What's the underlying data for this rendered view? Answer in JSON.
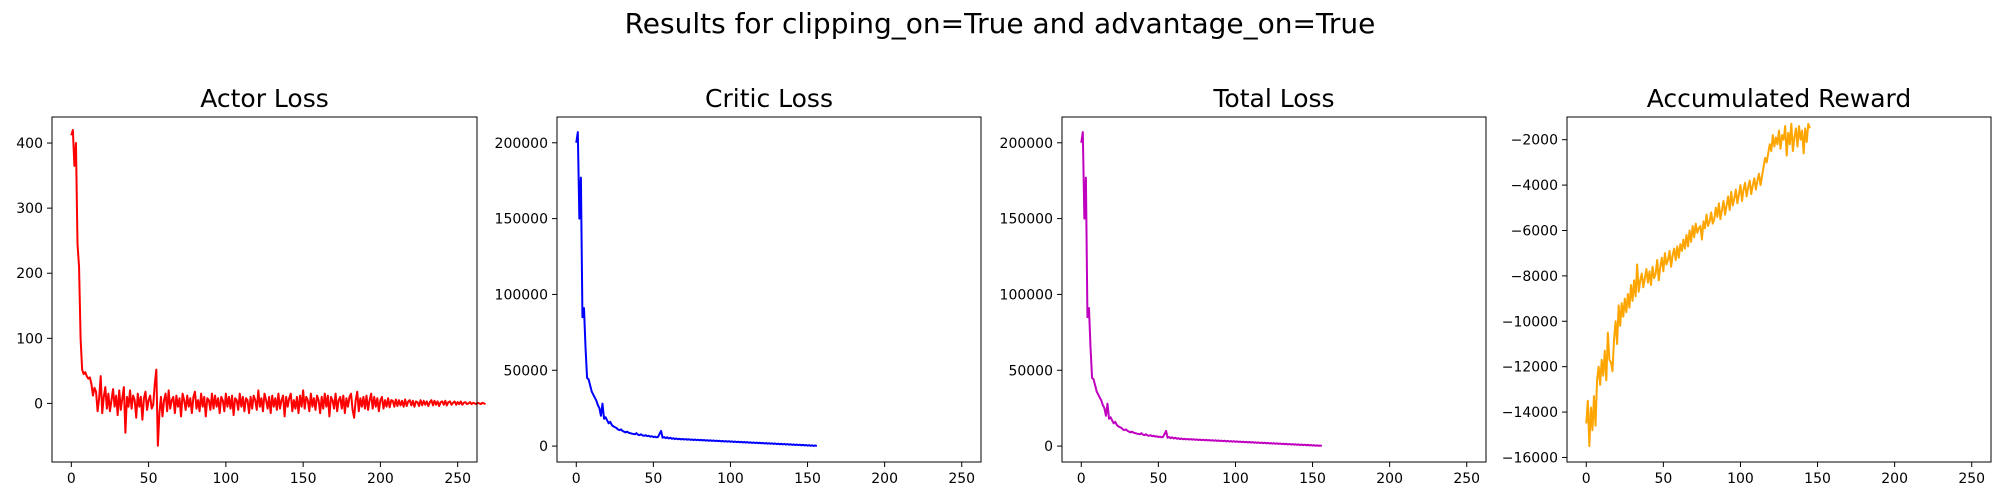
{
  "figure": {
    "title": "Results for clipping_on=True and advantage_on=True"
  },
  "chart_data": [
    {
      "type": "line",
      "title": "Actor Loss",
      "xlabel": "",
      "ylabel": "",
      "color": "#ff0000",
      "xlim": [
        -12.5,
        262.5
      ],
      "ylim": [
        -90,
        440
      ],
      "xticks": [
        0,
        50,
        100,
        150,
        200,
        250
      ],
      "yticks": [
        0,
        100,
        200,
        300,
        400
      ],
      "grid": false,
      "series": [
        {
          "values": [
            412,
            420,
            365,
            400,
            245,
            210,
            100,
            52,
            45,
            48,
            42,
            38,
            40,
            30,
            12,
            24,
            18,
            -12,
            8,
            42,
            -15,
            10,
            25,
            -8,
            15,
            -12,
            5,
            22,
            -5,
            12,
            -18,
            20,
            -10,
            8,
            25,
            -45,
            10,
            -5,
            20,
            -8,
            12,
            5,
            -22,
            15,
            -5,
            10,
            -25,
            8,
            18,
            -10,
            5,
            12,
            -8,
            -2,
            30,
            52,
            -65,
            -15,
            10,
            -20,
            5,
            15,
            -12,
            20,
            -8,
            5,
            10,
            -15,
            12,
            -5,
            8,
            -20,
            15,
            5,
            -10,
            12,
            -5,
            8,
            -15,
            10,
            18,
            -8,
            5,
            -12,
            15,
            -5,
            10,
            -20,
            8,
            5,
            -10,
            15,
            -8,
            12,
            -5,
            8,
            -15,
            10,
            5,
            -12,
            15,
            -5,
            10,
            -8,
            12,
            -18,
            8,
            5,
            -10,
            15,
            -5,
            10,
            -12,
            8,
            5,
            -15,
            10,
            -8,
            12,
            5,
            -10,
            20,
            -5,
            8,
            -12,
            15,
            5,
            -8,
            10,
            -15,
            12,
            -5,
            8,
            -10,
            15,
            -8,
            5,
            12,
            -20,
            10,
            -5,
            8,
            15,
            -12,
            5,
            -8,
            10,
            -15,
            12,
            -5,
            20,
            -8,
            10,
            5,
            -12,
            15,
            -5,
            8,
            -10,
            12,
            5,
            -15,
            10,
            -8,
            15,
            -5,
            12,
            -20,
            10,
            5,
            -8,
            15,
            -12,
            5,
            10,
            -8,
            12,
            -15,
            8,
            -5,
            10,
            15,
            -10,
            -22,
            5,
            18,
            -12,
            8,
            -5,
            10,
            -8,
            12,
            -10,
            5,
            15,
            -8,
            10,
            -5,
            8,
            -12,
            5,
            10,
            -8,
            5,
            -5,
            8,
            -6,
            5,
            4,
            -5,
            6,
            -4,
            5,
            -3,
            4,
            -5,
            6,
            -4,
            3,
            5,
            -3,
            4,
            -5,
            3,
            2,
            -4,
            5,
            -3,
            4,
            -2,
            3,
            -4,
            2,
            5,
            -3,
            4,
            -2,
            3,
            -4,
            2,
            3,
            -2,
            4,
            -3,
            2,
            3,
            -2,
            1,
            3,
            -2,
            2,
            -1,
            3,
            -2,
            1,
            2,
            -1,
            0,
            2,
            -1,
            1,
            0,
            -1,
            1,
            0,
            -1,
            1,
            0,
            -1
          ]
        }
      ]
    },
    {
      "type": "line",
      "title": "Critic Loss",
      "xlabel": "",
      "ylabel": "",
      "color": "#0000ff",
      "xlim": [
        -12.5,
        262.5
      ],
      "ylim": [
        -10500,
        217000
      ],
      "xticks": [
        0,
        50,
        100,
        150,
        200,
        250
      ],
      "yticks": [
        0,
        50000,
        100000,
        150000,
        200000
      ],
      "grid": false,
      "series": [
        {
          "values": [
            200000,
            207000,
            150000,
            177000,
            85000,
            91000,
            65000,
            45000,
            44000,
            40000,
            36000,
            34000,
            32000,
            30000,
            27000,
            25000,
            20000,
            28000,
            18000,
            19000,
            17000,
            15000,
            16000,
            14000,
            13000,
            12500,
            12000,
            11000,
            10500,
            11000,
            10000,
            9500,
            9000,
            9500,
            8800,
            8500,
            8200,
            8000,
            7800,
            8500,
            7500,
            7200,
            7800,
            7000,
            6800,
            7200,
            6500,
            6800,
            6200,
            6500,
            6000,
            6200,
            5800,
            6000,
            8000,
            10000,
            5500,
            6000,
            5200,
            5800,
            5000,
            5500,
            4800,
            5200,
            4600,
            5000,
            4500,
            4800,
            4400,
            4700,
            4300,
            4600,
            4200,
            4500,
            4100,
            4400,
            4000,
            4300,
            3900,
            4200,
            3800,
            4100,
            3700,
            4000,
            3600,
            3900,
            3500,
            3800,
            3400,
            3700,
            3300,
            3600,
            3200,
            3500,
            3100,
            3400,
            3000,
            3300,
            2900,
            3200,
            2800,
            3100,
            2700,
            3000,
            2600,
            2900,
            2500,
            2800,
            2400,
            2700,
            2300,
            2600,
            2200,
            2500,
            2100,
            2400,
            2000,
            2300,
            1900,
            2200,
            1800,
            2100,
            1700,
            2000,
            1600,
            1900,
            1500,
            1800,
            1400,
            1700,
            1300,
            1600,
            1200,
            1500,
            1100,
            1400,
            1000,
            1300,
            900,
            1200,
            800,
            1100,
            700,
            1000,
            600,
            900,
            500,
            800,
            400,
            700,
            300,
            600,
            200,
            500,
            100,
            400,
            0
          ]
        }
      ]
    },
    {
      "type": "line",
      "title": "Total Loss",
      "xlabel": "",
      "ylabel": "",
      "color": "#bf00bf",
      "xlim": [
        -12.5,
        262.5
      ],
      "ylim": [
        -10500,
        217000
      ],
      "xticks": [
        0,
        50,
        100,
        150,
        200,
        250
      ],
      "yticks": [
        0,
        50000,
        100000,
        150000,
        200000
      ],
      "grid": false,
      "series": [
        {
          "values": [
            200000,
            207000,
            150000,
            177000,
            85000,
            91000,
            65000,
            45000,
            44000,
            40000,
            36000,
            34000,
            32000,
            30000,
            27000,
            25000,
            20000,
            28000,
            18000,
            19000,
            17000,
            15000,
            16000,
            14000,
            13000,
            12500,
            12000,
            11000,
            10500,
            11000,
            10000,
            9500,
            9000,
            9500,
            8800,
            8500,
            8200,
            8000,
            7800,
            8500,
            7500,
            7200,
            7800,
            7000,
            6800,
            7200,
            6500,
            6800,
            6200,
            6500,
            6000,
            6200,
            5800,
            6000,
            8000,
            10000,
            5500,
            6000,
            5200,
            5800,
            5000,
            5500,
            4800,
            5200,
            4600,
            5000,
            4500,
            4800,
            4400,
            4700,
            4300,
            4600,
            4200,
            4500,
            4100,
            4400,
            4000,
            4300,
            3900,
            4200,
            3800,
            4100,
            3700,
            4000,
            3600,
            3900,
            3500,
            3800,
            3400,
            3700,
            3300,
            3600,
            3200,
            3500,
            3100,
            3400,
            3000,
            3300,
            2900,
            3200,
            2800,
            3100,
            2700,
            3000,
            2600,
            2900,
            2500,
            2800,
            2400,
            2700,
            2300,
            2600,
            2200,
            2500,
            2100,
            2400,
            2000,
            2300,
            1900,
            2200,
            1800,
            2100,
            1700,
            2000,
            1600,
            1900,
            1500,
            1800,
            1400,
            1700,
            1300,
            1600,
            1200,
            1500,
            1100,
            1400,
            1000,
            1300,
            900,
            1200,
            800,
            1100,
            700,
            1000,
            600,
            900,
            500,
            800,
            400,
            700,
            300,
            600,
            200,
            500,
            100,
            400,
            0
          ]
        }
      ]
    },
    {
      "type": "line",
      "title": "Accumulated Reward",
      "xlabel": "",
      "ylabel": "",
      "color": "#ffa500",
      "xlim": [
        -12.5,
        262.5
      ],
      "ylim": [
        -16200,
        -1000
      ],
      "xticks": [
        0,
        50,
        100,
        150,
        200,
        250
      ],
      "yticks": [
        -16000,
        -14000,
        -12000,
        -10000,
        -8000,
        -6000,
        -4000,
        -2000
      ],
      "grid": false,
      "series": [
        {
          "values": [
            -14500,
            -13500,
            -15500,
            -13800,
            -14800,
            -13300,
            -14600,
            -12600,
            -12000,
            -12800,
            -11700,
            -12400,
            -11300,
            -12600,
            -10500,
            -11700,
            -11800,
            -12200,
            -10800,
            -10000,
            -11000,
            -9300,
            -10200,
            -9200,
            -9800,
            -9000,
            -9600,
            -8800,
            -9400,
            -8400,
            -9100,
            -8200,
            -8900,
            -7500,
            -8700,
            -8200,
            -7900,
            -8500,
            -8100,
            -7700,
            -8300,
            -7800,
            -8400,
            -7600,
            -8100,
            -7900,
            -7300,
            -8200,
            -7600,
            -7200,
            -7800,
            -7000,
            -7500,
            -7300,
            -6900,
            -7600,
            -7100,
            -6800,
            -7300,
            -6700,
            -7200,
            -6600,
            -6900,
            -6400,
            -6800,
            -6200,
            -6700,
            -6000,
            -6500,
            -5800,
            -6300,
            -5700,
            -6100,
            -5900,
            -5800,
            -6400,
            -5600,
            -5900,
            -5300,
            -5800,
            -5600,
            -5200,
            -5700,
            -5500,
            -5000,
            -5400,
            -4800,
            -5500,
            -5100,
            -4700,
            -5300,
            -4900,
            -4500,
            -5100,
            -4300,
            -4900,
            -4600,
            -4200,
            -4800,
            -4400,
            -4000,
            -4700,
            -4200,
            -3900,
            -4500,
            -4100,
            -3800,
            -4400,
            -4000,
            -3700,
            -4200,
            -3800,
            -3500,
            -4000,
            -3600,
            -3200,
            -2800,
            -3000,
            -2600,
            -2200,
            -2500,
            -1800,
            -2300,
            -1900,
            -2200,
            -1600,
            -2400,
            -1800,
            -2000,
            -1400,
            -2700,
            -1700,
            -2200,
            -1300,
            -2500,
            -1900,
            -1500,
            -2300,
            -1400,
            -2000,
            -1600,
            -2600,
            -1500,
            -2100,
            -1300,
            -1500
          ]
        }
      ]
    }
  ]
}
